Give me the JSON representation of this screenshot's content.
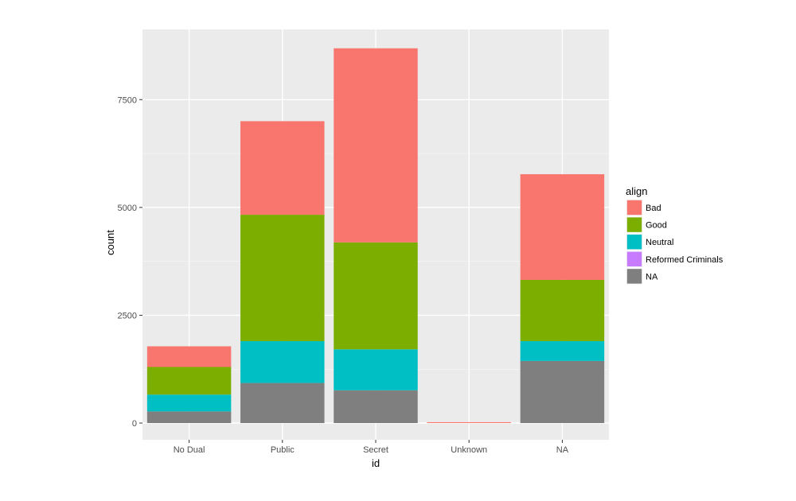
{
  "chart_data": {
    "type": "bar",
    "stacked": true,
    "xlabel": "id",
    "ylabel": "count",
    "categories": [
      "No Dual",
      "Public",
      "Secret",
      "Unknown",
      "NA"
    ],
    "ylim": [
      0,
      8700
    ],
    "yticks": [
      0,
      2500,
      5000,
      7500
    ],
    "ytick_labels": [
      "0",
      "2500",
      "5000",
      "7500"
    ],
    "grid": true,
    "legend_title": "align",
    "legend_position": "right",
    "series": [
      {
        "name": "Bad",
        "color": "#F8766D",
        "values": [
          480,
          2170,
          4500,
          20,
          2450
        ]
      },
      {
        "name": "Good",
        "color": "#7CAE00",
        "values": [
          640,
          2930,
          2480,
          0,
          1420
        ]
      },
      {
        "name": "Neutral",
        "color": "#00BFC4",
        "values": [
          390,
          970,
          950,
          0,
          460
        ]
      },
      {
        "name": "Reformed Criminals",
        "color": "#C77CFF",
        "values": [
          0,
          0,
          0,
          0,
          0
        ]
      },
      {
        "name": "NA",
        "color": "#7F7F7F",
        "values": [
          270,
          930,
          760,
          0,
          1440
        ]
      }
    ],
    "stack_order": [
      "NA",
      "Reformed Criminals",
      "Neutral",
      "Good",
      "Bad"
    ]
  }
}
